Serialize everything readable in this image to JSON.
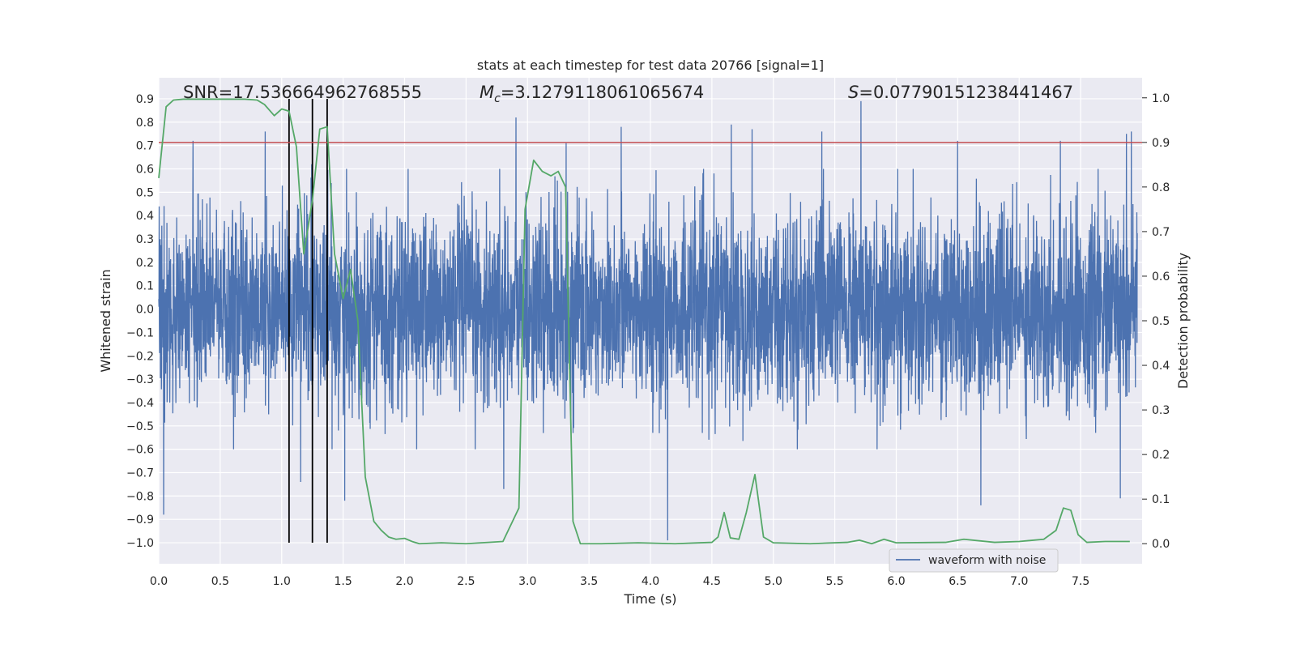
{
  "chart_data": {
    "type": "line",
    "title": "stats at each timestep for test data 20766 [signal=1]",
    "xlabel": "Time (s)",
    "ylabel_left": "Whitened strain",
    "ylabel_right": "Detection probability",
    "xlim": [
      0.0,
      8.0
    ],
    "ylim_left": [
      -1.09,
      0.99
    ],
    "ylim_right": [
      -0.045,
      1.045
    ],
    "x_ticks": [
      "0.0",
      "0.5",
      "1.0",
      "1.5",
      "2.0",
      "2.5",
      "3.0",
      "3.5",
      "4.0",
      "4.5",
      "5.0",
      "5.5",
      "6.0",
      "6.5",
      "7.0",
      "7.5"
    ],
    "y_ticks_left": [
      "0.9",
      "0.8",
      "0.7",
      "0.6",
      "0.5",
      "0.4",
      "0.3",
      "0.2",
      "0.1",
      "0.0",
      "-0.1",
      "-0.2",
      "-0.3",
      "-0.4",
      "-0.5",
      "-0.6",
      "-0.7",
      "-0.8",
      "-0.9",
      "-1.0"
    ],
    "y_ticks_right": [
      "1.0",
      "0.9",
      "0.8",
      "0.7",
      "0.6",
      "0.5",
      "0.4",
      "0.3",
      "0.2",
      "0.1",
      "0.0"
    ],
    "grid": true,
    "legend_placement": "lower-right",
    "annotations": {
      "snr": "SNR=17.536664962768555",
      "mc_prefix": "M",
      "mc_sub": "c",
      "mc_value": "=3.1279118061065674",
      "s_prefix": "S",
      "s_value": "=0.07790151238441467"
    },
    "series": [
      {
        "name": "waveform with noise",
        "color": "#4c72b0",
        "kind": "noise-strain",
        "typical_range": [
          -0.45,
          0.45
        ],
        "max_value": 0.89,
        "min_value": -0.99,
        "peaks": [
          [
            0.28,
            0.72
          ],
          [
            0.87,
            0.76
          ],
          [
            1.25,
            0.62
          ],
          [
            2.92,
            0.82
          ],
          [
            3.33,
            0.71
          ],
          [
            3.78,
            0.78
          ],
          [
            4.68,
            0.79
          ],
          [
            4.85,
            0.77
          ],
          [
            5.42,
            0.76
          ],
          [
            5.74,
            0.89
          ],
          [
            6.53,
            0.72
          ],
          [
            7.37,
            0.72
          ],
          [
            7.91,
            0.75
          ],
          [
            7.95,
            0.76
          ],
          [
            0.04,
            -0.88
          ],
          [
            1.16,
            -0.74
          ],
          [
            1.52,
            -0.82
          ],
          [
            2.82,
            -0.77
          ],
          [
            4.16,
            -0.99
          ],
          [
            6.72,
            -0.84
          ],
          [
            7.86,
            -0.81
          ]
        ]
      },
      {
        "name": "detection probability",
        "color": "#55a868",
        "kind": "probability",
        "x": [
          0.0,
          0.06,
          0.12,
          0.2,
          0.3,
          0.4,
          0.5,
          0.6,
          0.7,
          0.8,
          0.86,
          0.94,
          1.0,
          1.06,
          1.12,
          1.18,
          1.25,
          1.31,
          1.37,
          1.43,
          1.5,
          1.56,
          1.62,
          1.68,
          1.75,
          1.81,
          1.87,
          1.93,
          2.0,
          2.06,
          2.12,
          2.3,
          2.5,
          2.8,
          2.93,
          2.98,
          3.05,
          3.12,
          3.19,
          3.25,
          3.31,
          3.37,
          3.43,
          3.6,
          3.9,
          4.2,
          4.5,
          4.55,
          4.6,
          4.65,
          4.72,
          4.78,
          4.85,
          4.92,
          5.0,
          5.3,
          5.6,
          5.7,
          5.8,
          5.9,
          6.0,
          6.4,
          6.55,
          6.8,
          7.0,
          7.2,
          7.3,
          7.36,
          7.42,
          7.48,
          7.55,
          7.7,
          7.9
        ],
        "values": [
          0.82,
          0.98,
          0.995,
          0.997,
          0.997,
          0.997,
          0.997,
          0.997,
          0.997,
          0.995,
          0.985,
          0.96,
          0.975,
          0.97,
          0.89,
          0.65,
          0.77,
          0.93,
          0.935,
          0.65,
          0.55,
          0.615,
          0.5,
          0.15,
          0.05,
          0.03,
          0.015,
          0.01,
          0.012,
          0.005,
          0.0,
          0.002,
          0.0,
          0.005,
          0.08,
          0.75,
          0.86,
          0.835,
          0.825,
          0.835,
          0.8,
          0.05,
          0.0,
          0.0,
          0.002,
          0.0,
          0.003,
          0.015,
          0.07,
          0.013,
          0.01,
          0.07,
          0.155,
          0.015,
          0.002,
          0.0,
          0.003,
          0.008,
          0.0,
          0.01,
          0.002,
          0.003,
          0.01,
          0.003,
          0.005,
          0.01,
          0.03,
          0.08,
          0.075,
          0.02,
          0.003,
          0.005,
          0.005
        ]
      }
    ],
    "threshold_line": {
      "value": 0.9,
      "axis": "right",
      "color": "#c44e52"
    },
    "vertical_markers": {
      "x": [
        1.06,
        1.25,
        1.37
      ],
      "y_range": [
        -1.0,
        0.9
      ],
      "color": "#000000"
    }
  }
}
